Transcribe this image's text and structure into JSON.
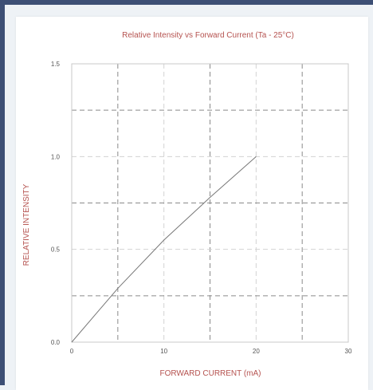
{
  "chart_data": {
    "type": "line",
    "title": "Relative Intensity vs Forward Current (Ta - 25°C)",
    "xlabel": "FORWARD CURRENT (mA)",
    "ylabel": "RELATIVE INTENSITY",
    "xlim": [
      0,
      30
    ],
    "ylim": [
      0,
      1.5
    ],
    "x_ticks": [
      "0",
      "10",
      "20",
      "30"
    ],
    "y_ticks": [
      "0.0",
      "0.5",
      "1.0",
      "1.5"
    ],
    "grid": true,
    "series": [
      {
        "x": [
          0,
          5,
          10,
          15,
          20
        ],
        "y": [
          0,
          0.29,
          0.55,
          0.78,
          1.0
        ],
        "color": "#777777"
      }
    ]
  }
}
